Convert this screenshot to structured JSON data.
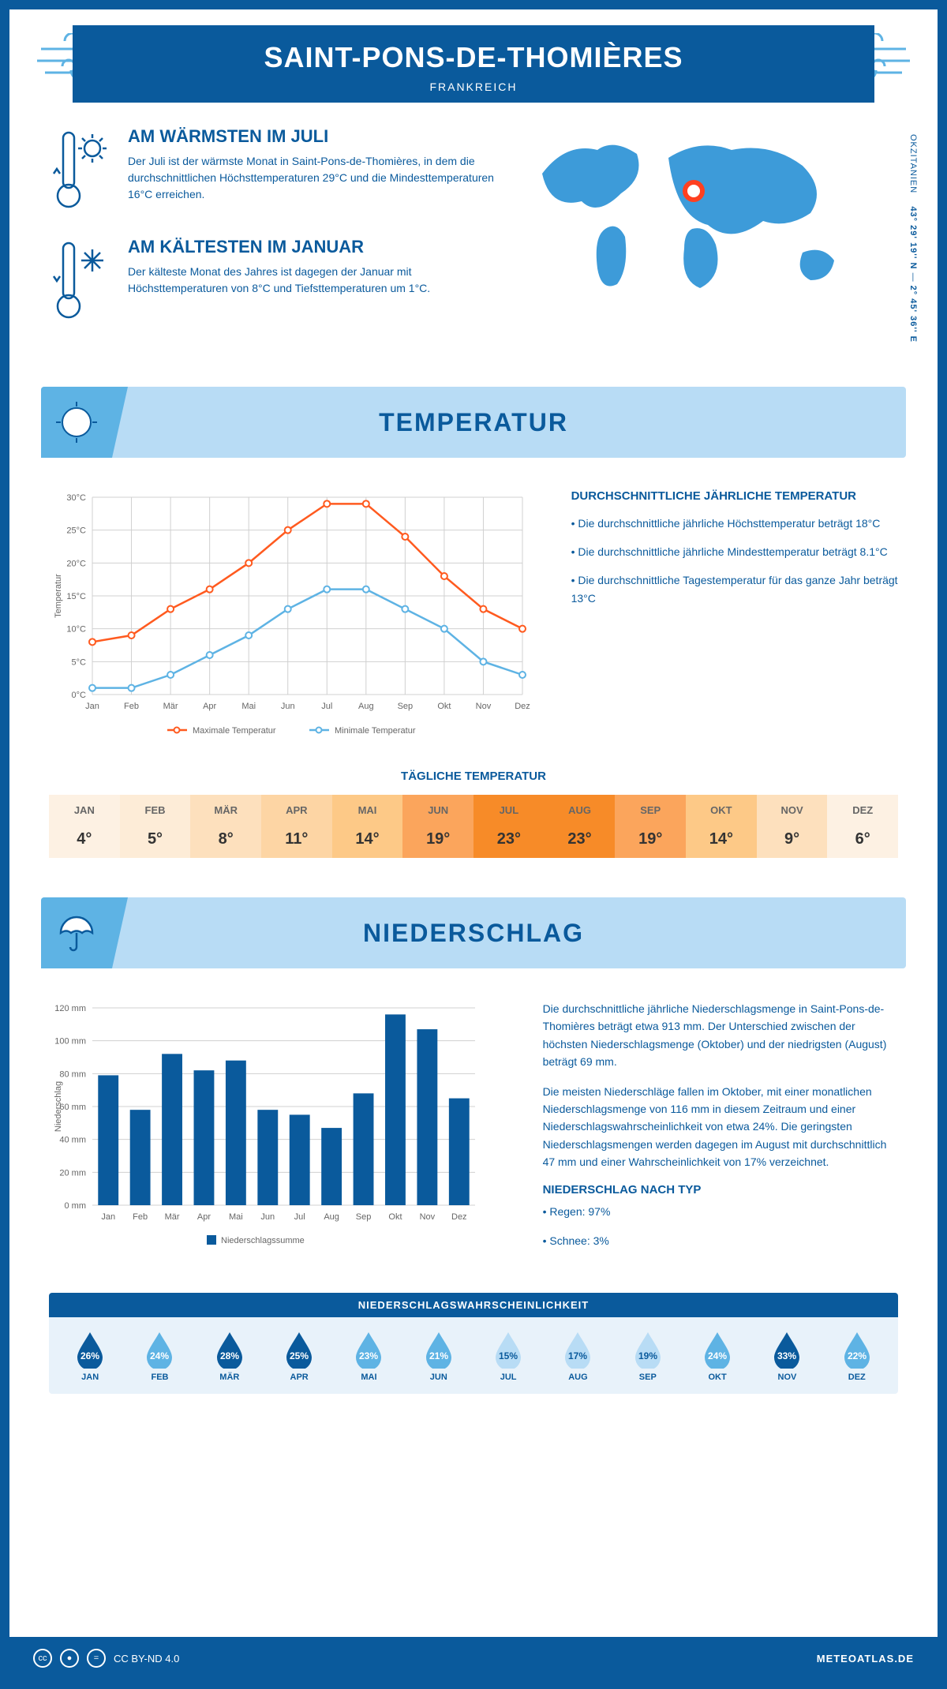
{
  "header": {
    "title": "SAINT-PONS-DE-THOMIÈRES",
    "subtitle": "FRANKREICH"
  },
  "coords": {
    "region": "OKZITANIEN",
    "lat": "43° 29' 19'' N",
    "lon": "2° 45' 36'' E"
  },
  "warm": {
    "title": "AM WÄRMSTEN IM JULI",
    "text": "Der Juli ist der wärmste Monat in Saint-Pons-de-Thomières, in dem die durchschnittlichen Höchsttemperaturen 29°C und die Mindesttemperaturen 16°C erreichen."
  },
  "cold": {
    "title": "AM KÄLTESTEN IM JANUAR",
    "text": "Der kälteste Monat des Jahres ist dagegen der Januar mit Höchsttemperaturen von 8°C und Tiefsttemperaturen um 1°C."
  },
  "section_temp": "TEMPERATUR",
  "section_precip": "NIEDERSCHLAG",
  "months": [
    "Jan",
    "Feb",
    "Mär",
    "Apr",
    "Mai",
    "Jun",
    "Jul",
    "Aug",
    "Sep",
    "Okt",
    "Nov",
    "Dez"
  ],
  "months_upper": [
    "JAN",
    "FEB",
    "MÄR",
    "APR",
    "MAI",
    "JUN",
    "JUL",
    "AUG",
    "SEP",
    "OKT",
    "NOV",
    "DEZ"
  ],
  "temp_chart": {
    "type": "line",
    "ylabel": "Temperatur",
    "ylim": [
      0,
      30
    ],
    "ytick_step": 5,
    "ytick_labels": [
      "0°C",
      "5°C",
      "10°C",
      "15°C",
      "20°C",
      "25°C",
      "30°C"
    ],
    "series": [
      {
        "name": "Maximale Temperatur",
        "color": "#ff5a1f",
        "values": [
          8,
          9,
          13,
          16,
          20,
          25,
          29,
          29,
          24,
          18,
          13,
          10
        ]
      },
      {
        "name": "Minimale Temperatur",
        "color": "#5eb3e4",
        "values": [
          1,
          1,
          3,
          6,
          9,
          13,
          16,
          16,
          13,
          10,
          5,
          3
        ]
      }
    ],
    "grid_color": "#d0d0d0",
    "background": "#ffffff",
    "marker": "circle"
  },
  "temp_text": {
    "heading": "DURCHSCHNITTLICHE JÄHRLICHE TEMPERATUR",
    "b1": "• Die durchschnittliche jährliche Höchsttemperatur beträgt 18°C",
    "b2": "• Die durchschnittliche jährliche Mindesttemperatur beträgt 8.1°C",
    "b3": "• Die durchschnittliche Tagestemperatur für das ganze Jahr beträgt 13°C"
  },
  "daily_temp": {
    "heading": "TÄGLICHE TEMPERATUR",
    "values": [
      "4°",
      "5°",
      "8°",
      "11°",
      "14°",
      "19°",
      "23°",
      "23°",
      "19°",
      "14°",
      "9°",
      "6°"
    ],
    "colors": [
      "#fdf1e3",
      "#fdecd7",
      "#fde0bd",
      "#fdd5a4",
      "#fdc987",
      "#fba55c",
      "#f78b28",
      "#f78b28",
      "#fba55c",
      "#fdc987",
      "#fde0bd",
      "#fdf1e3"
    ]
  },
  "precip_chart": {
    "type": "bar",
    "ylabel": "Niederschlag",
    "ylim": [
      0,
      120
    ],
    "ytick_step": 20,
    "ytick_labels": [
      "0 mm",
      "20 mm",
      "40 mm",
      "60 mm",
      "80 mm",
      "100 mm",
      "120 mm"
    ],
    "values": [
      79,
      58,
      92,
      82,
      88,
      58,
      55,
      47,
      68,
      116,
      107,
      65
    ],
    "bar_color": "#0a5a9c",
    "legend": "Niederschlagssumme",
    "grid_color": "#d0d0d0"
  },
  "precip_text": {
    "p1": "Die durchschnittliche jährliche Niederschlagsmenge in Saint-Pons-de-Thomières beträgt etwa 913 mm. Der Unterschied zwischen der höchsten Niederschlagsmenge (Oktober) und der niedrigsten (August) beträgt 69 mm.",
    "p2": "Die meisten Niederschläge fallen im Oktober, mit einer monatlichen Niederschlagsmenge von 116 mm in diesem Zeitraum und einer Niederschlagswahrscheinlichkeit von etwa 24%. Die geringsten Niederschlagsmengen werden dagegen im August mit durchschnittlich 47 mm und einer Wahrscheinlichkeit von 17% verzeichnet.",
    "type_heading": "NIEDERSCHLAG NACH TYP",
    "type1": "• Regen: 97%",
    "type2": "• Schnee: 3%"
  },
  "prob": {
    "heading": "NIEDERSCHLAGSWAHRSCHEINLICHKEIT",
    "values": [
      "26%",
      "24%",
      "28%",
      "25%",
      "23%",
      "21%",
      "15%",
      "17%",
      "19%",
      "24%",
      "33%",
      "22%"
    ],
    "colors": [
      "#0a5a9c",
      "#5eb3e4",
      "#0a5a9c",
      "#0a5a9c",
      "#5eb3e4",
      "#5eb3e4",
      "#b8dcf5",
      "#b8dcf5",
      "#b8dcf5",
      "#5eb3e4",
      "#0a5a9c",
      "#5eb3e4"
    ]
  },
  "footer": {
    "license": "CC BY-ND 4.0",
    "brand": "METEOATLAS.DE"
  }
}
